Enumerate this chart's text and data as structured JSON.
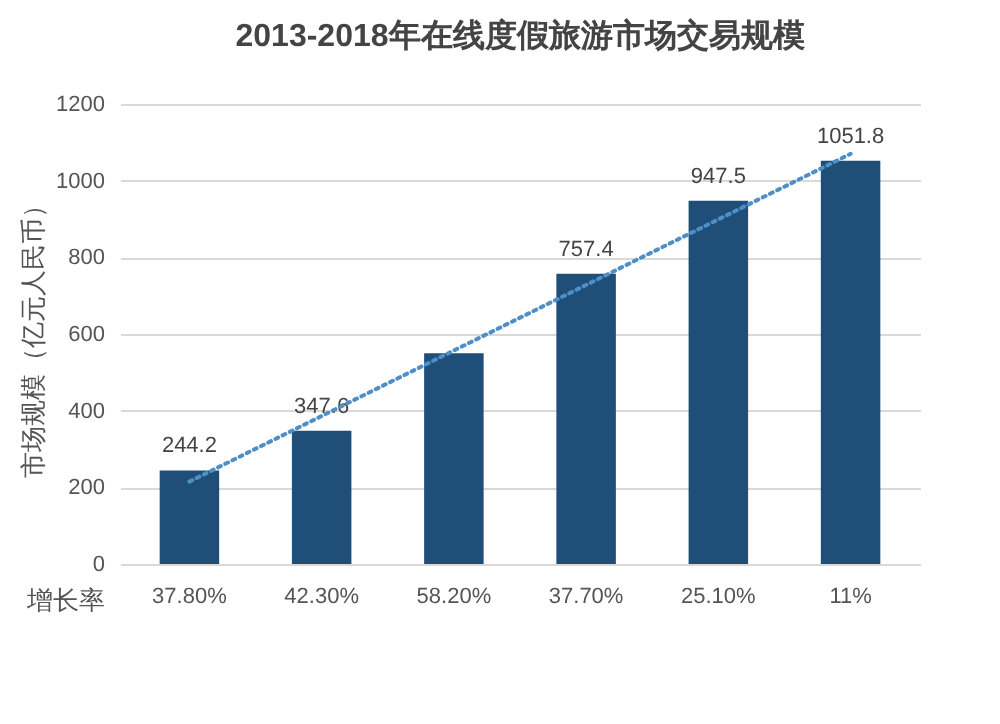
{
  "chart_data": {
    "type": "bar",
    "title": "2013-2018年在线度假旅游市场交易规模",
    "ylabel": "市场规模（亿元人民币）",
    "xlabel": "增长率",
    "categories": [
      "37.80%",
      "42.30%",
      "58.20%",
      "37.70%",
      "25.10%",
      "11%"
    ],
    "series": [
      {
        "type": "bar",
        "color": "#1f4e79",
        "values": [
          244.2,
          347.6,
          550,
          757.4,
          947.5,
          1051.8
        ],
        "value_labels": [
          "244.2",
          "347.6",
          null,
          "757.4",
          "947.5",
          "1051.8"
        ]
      },
      {
        "type": "line",
        "color": "#4f8fc7",
        "line_style": "dotted",
        "values": [
          215,
          386,
          557,
          728,
          899,
          1070
        ]
      }
    ],
    "ylim": [
      0,
      1200
    ],
    "yticks": [
      0,
      200,
      400,
      600,
      800,
      1000,
      1200
    ],
    "grid": "y"
  }
}
